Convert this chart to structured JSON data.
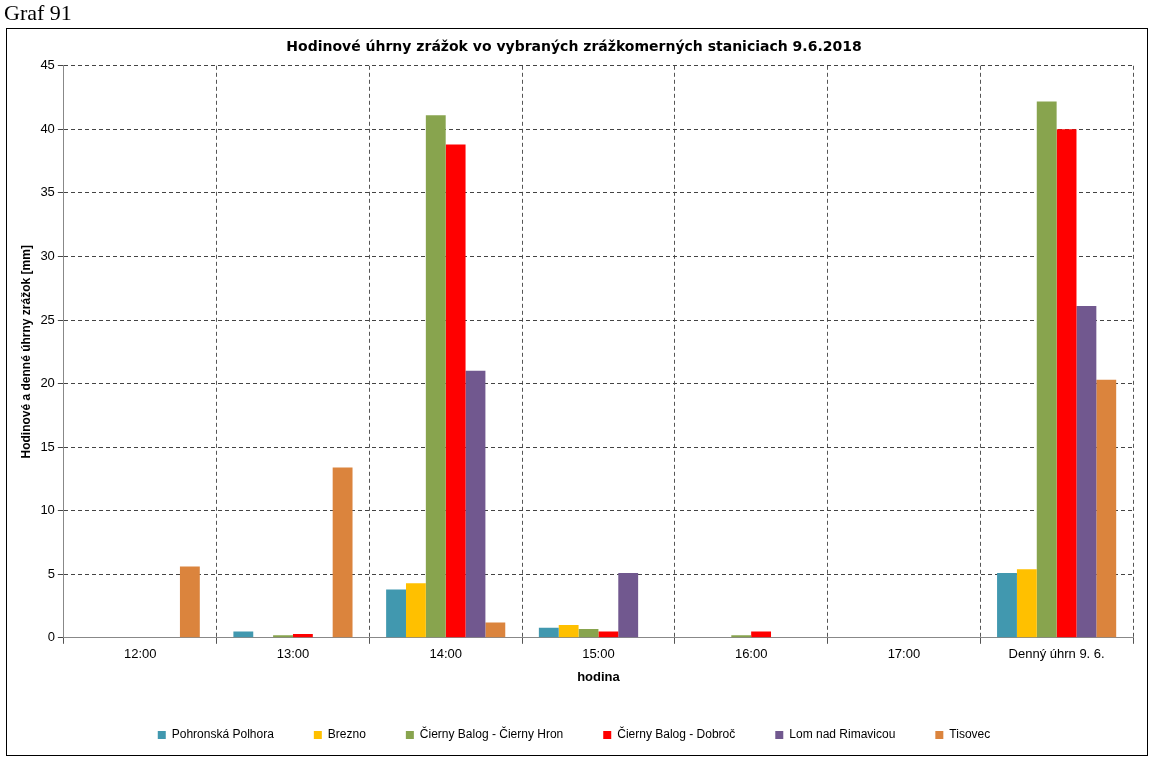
{
  "chart_data": {
    "type": "bar",
    "title": "Hodinové úhrny zrážok vo vybraných zrážkomerných staniciach 9.6.2018",
    "xlabel": "hodina",
    "ylabel": "Hodinové a denné úhrny zrážok [mm]",
    "annotations": [
      "Graf 91"
    ],
    "categories": [
      "12:00",
      "13:00",
      "14:00",
      "15:00",
      "16:00",
      "17:00",
      "Denný úhrn 9. 6."
    ],
    "series": [
      {
        "name": "Pohronská Polhora",
        "color": "#4198af",
        "values": [
          0,
          0.5,
          3.8,
          0.8,
          0,
          0,
          5.1
        ]
      },
      {
        "name": "Brezno",
        "color": "#ffc000",
        "values": [
          0,
          0,
          4.3,
          1.0,
          0,
          0,
          5.4
        ]
      },
      {
        "name": "Čierny Balog - Čierny Hron",
        "color": "#88a44e",
        "values": [
          0,
          0.2,
          41.1,
          0.7,
          0.2,
          0,
          42.2
        ]
      },
      {
        "name": "Čierny Balog - Dobroč",
        "color": "#ff0000",
        "values": [
          0,
          0.3,
          38.8,
          0.5,
          0.5,
          0,
          40.0
        ]
      },
      {
        "name": "Lom nad Rimavicou",
        "color": "#71588f",
        "values": [
          0,
          0,
          21.0,
          5.1,
          0,
          0,
          26.1
        ]
      },
      {
        "name": "Tisovec",
        "color": "#db843d",
        "values": [
          5.6,
          13.4,
          1.2,
          0,
          0,
          0,
          20.3
        ]
      }
    ],
    "ylim": [
      0,
      45
    ],
    "yticks": [
      0,
      5,
      10,
      15,
      20,
      25,
      30,
      35,
      40,
      45
    ],
    "grid": true,
    "legend": "bottom"
  }
}
